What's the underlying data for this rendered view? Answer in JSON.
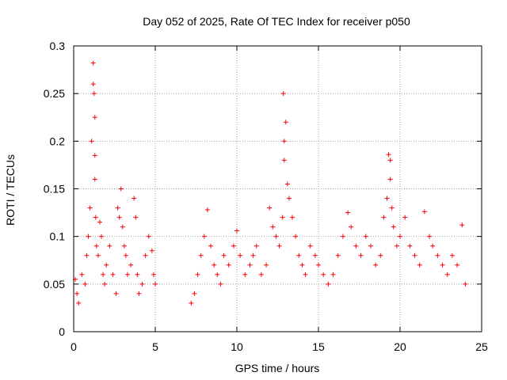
{
  "chart_data": {
    "type": "scatter",
    "title": "Day 052 of 2025, Rate Of TEC Index for receiver p050",
    "xlabel": "GPS time / hours",
    "ylabel": "ROTI / TECUs",
    "xlim": [
      0,
      25
    ],
    "ylim": [
      0,
      0.3
    ],
    "xticks": [
      0,
      5,
      10,
      15,
      20,
      25
    ],
    "yticks": [
      0,
      0.05,
      0.1,
      0.15,
      0.2,
      0.25,
      0.3
    ],
    "xtick_labels": [
      "0",
      "5",
      "10",
      "15",
      "20",
      "25"
    ],
    "ytick_labels": [
      "0",
      "0.05",
      "0.1",
      "0.15",
      "0.2",
      "0.25",
      "0.3"
    ],
    "grid": true,
    "marker": "+",
    "color": "#ff0000",
    "series": [
      {
        "x": [
          0.1,
          0.2,
          0.3,
          0.5,
          0.7,
          0.8,
          0.9,
          1.0,
          1.1,
          1.2,
          1.2,
          1.25,
          1.3,
          1.3,
          1.3,
          1.35,
          1.4,
          1.5,
          1.6,
          1.7,
          1.8,
          1.9,
          2.0,
          2.2,
          2.4,
          2.6,
          2.7,
          2.8,
          2.9,
          3.0,
          3.1,
          3.2,
          3.3,
          3.5,
          3.7,
          3.8,
          3.9,
          4.0,
          4.2,
          4.4,
          4.6,
          4.8,
          4.9,
          5.0,
          7.2,
          7.4,
          7.6,
          7.8,
          8.0,
          8.2,
          8.4,
          8.6,
          8.8,
          9.0,
          9.2,
          9.5,
          9.8,
          10.0,
          10.2,
          10.5,
          10.8,
          11.0,
          11.2,
          11.5,
          11.8,
          12.0,
          12.2,
          12.4,
          12.6,
          12.8,
          12.85,
          12.9,
          12.9,
          13.0,
          13.1,
          13.2,
          13.4,
          13.6,
          13.8,
          14.0,
          14.2,
          14.5,
          14.8,
          15.0,
          15.3,
          15.6,
          15.9,
          16.2,
          16.5,
          16.8,
          17.0,
          17.3,
          17.6,
          17.9,
          18.2,
          18.5,
          18.8,
          19.0,
          19.2,
          19.3,
          19.4,
          19.4,
          19.5,
          19.6,
          19.8,
          20.0,
          20.3,
          20.6,
          20.9,
          21.2,
          21.5,
          21.8,
          22.0,
          22.3,
          22.6,
          22.9,
          23.2,
          23.5,
          23.8,
          24.0
        ],
        "y": [
          0.055,
          0.04,
          0.03,
          0.06,
          0.05,
          0.08,
          0.1,
          0.13,
          0.2,
          0.26,
          0.282,
          0.25,
          0.225,
          0.185,
          0.16,
          0.12,
          0.09,
          0.08,
          0.115,
          0.1,
          0.06,
          0.05,
          0.07,
          0.09,
          0.06,
          0.04,
          0.13,
          0.12,
          0.15,
          0.11,
          0.09,
          0.08,
          0.06,
          0.07,
          0.14,
          0.12,
          0.06,
          0.04,
          0.05,
          0.08,
          0.1,
          0.085,
          0.06,
          0.05,
          0.03,
          0.04,
          0.06,
          0.08,
          0.1,
          0.128,
          0.09,
          0.07,
          0.06,
          0.05,
          0.08,
          0.07,
          0.09,
          0.106,
          0.08,
          0.06,
          0.07,
          0.08,
          0.09,
          0.06,
          0.07,
          0.13,
          0.11,
          0.1,
          0.09,
          0.12,
          0.25,
          0.2,
          0.18,
          0.22,
          0.155,
          0.14,
          0.12,
          0.1,
          0.08,
          0.07,
          0.06,
          0.09,
          0.08,
          0.07,
          0.06,
          0.05,
          0.06,
          0.08,
          0.1,
          0.125,
          0.11,
          0.09,
          0.08,
          0.1,
          0.09,
          0.07,
          0.08,
          0.12,
          0.14,
          0.186,
          0.18,
          0.16,
          0.13,
          0.11,
          0.09,
          0.1,
          0.12,
          0.09,
          0.08,
          0.07,
          0.126,
          0.1,
          0.09,
          0.08,
          0.07,
          0.06,
          0.08,
          0.07,
          0.112,
          0.05
        ]
      }
    ]
  }
}
